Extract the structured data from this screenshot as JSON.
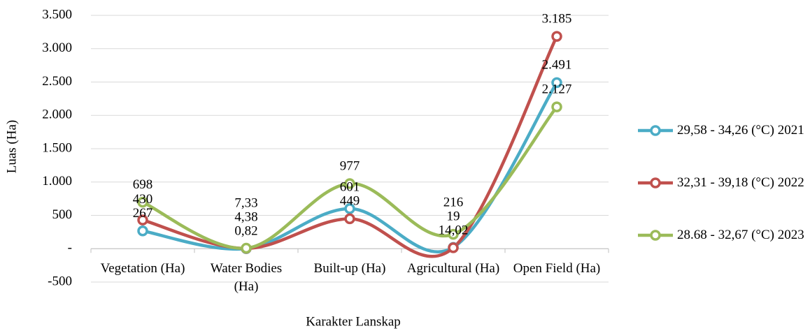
{
  "chart_data": {
    "type": "line",
    "x_label": "Karakter Lanskap",
    "y_label": "Luas (Ha)",
    "categories": [
      "Vegetation (Ha)",
      "Water Bodies (Ha)",
      "Built-up (Ha)",
      "Agricultural (Ha)",
      "Open Field (Ha)"
    ],
    "series": [
      {
        "name": "29,58 - 34,26 (°C) 2021",
        "color": "#4bacc6",
        "values": [
          267,
          0.82,
          601,
          19,
          2491
        ],
        "value_labels": [
          "267",
          "0,82",
          "601",
          "19",
          "2.491"
        ]
      },
      {
        "name": "32,31 - 39,18 (°C) 2022",
        "color": "#c0504d",
        "values": [
          430,
          4.38,
          449,
          14.02,
          3185
        ],
        "value_labels": [
          "430",
          "4,38",
          "449",
          "14,02",
          "3.185"
        ]
      },
      {
        "name": "28.68 - 32,67 (°C) 2023",
        "color": "#9bbb59",
        "values": [
          698,
          7.33,
          977,
          216,
          2127
        ],
        "value_labels": [
          "698",
          "7,33",
          "977",
          "216",
          "2.127"
        ]
      }
    ],
    "ylim": [
      -500,
      3500
    ],
    "yticks": [
      -500,
      {
        "value": 0,
        "label": "-"
      },
      500,
      {
        "value": 1000,
        "label": "1.000"
      },
      {
        "value": 1500,
        "label": "1.500"
      },
      {
        "value": 2000,
        "label": "2.000"
      },
      {
        "value": 2500,
        "label": "2.500"
      },
      {
        "value": 3000,
        "label": "3.000"
      },
      {
        "value": 3500,
        "label": "3.500"
      }
    ],
    "grid": true,
    "legend": "right"
  }
}
